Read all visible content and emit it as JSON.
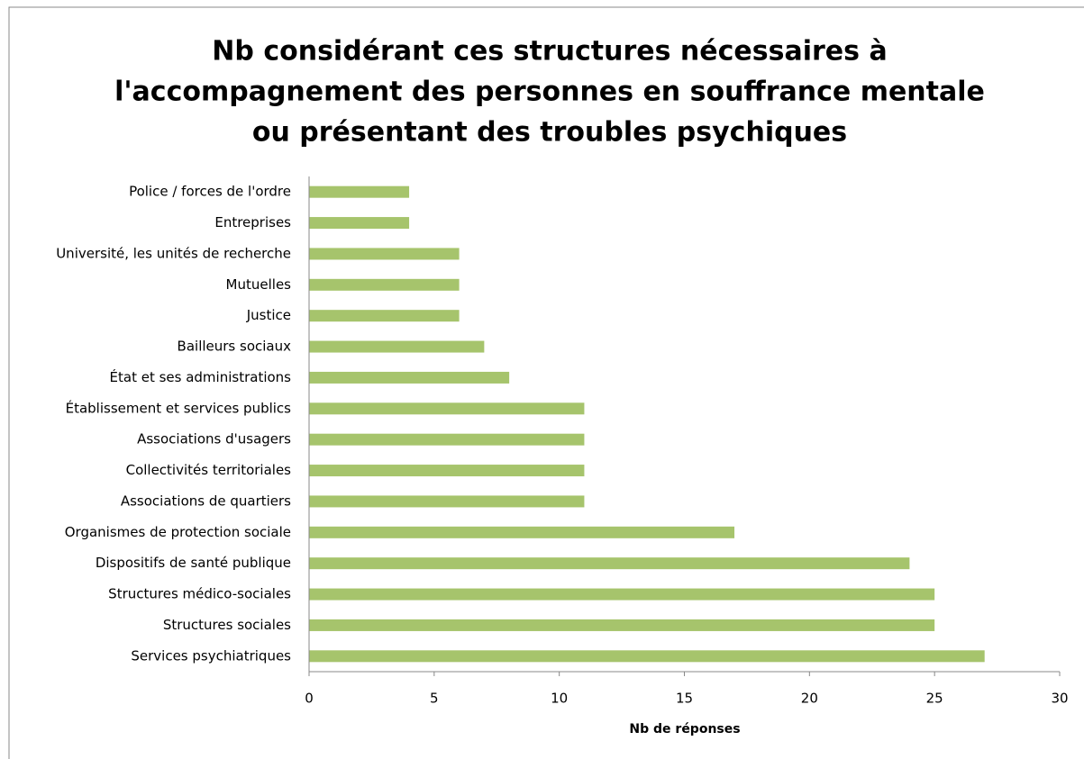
{
  "chart_data": {
    "type": "barh",
    "title": [
      "Nb considérant ces structures nécessaires à",
      "l'accompagnement des personnes en souffrance mentale",
      "ou présentant des troubles psychiques"
    ],
    "x_label": "Nb de réponses",
    "categories": [
      "Police / forces de l'ordre",
      "Entreprises",
      "Université, les unités de recherche",
      "Mutuelles",
      "Justice",
      "Bailleurs sociaux",
      "État et ses administrations",
      "Établissement et services publics",
      "Associations d'usagers",
      "Collectivités territoriales",
      "Associations de quartiers",
      "Organismes de protection sociale",
      "Dispositifs de santé publique",
      "Structures médico-sociales",
      "Structures sociales",
      "Services psychiatriques"
    ],
    "values": [
      4,
      4,
      6,
      6,
      6,
      7,
      8,
      11,
      11,
      11,
      11,
      17,
      24,
      25,
      25,
      27
    ],
    "color": "#a6c46c",
    "xlim": [
      0,
      30
    ],
    "xticks": [
      0,
      5,
      10,
      15,
      20,
      25,
      30
    ],
    "grid": false
  }
}
